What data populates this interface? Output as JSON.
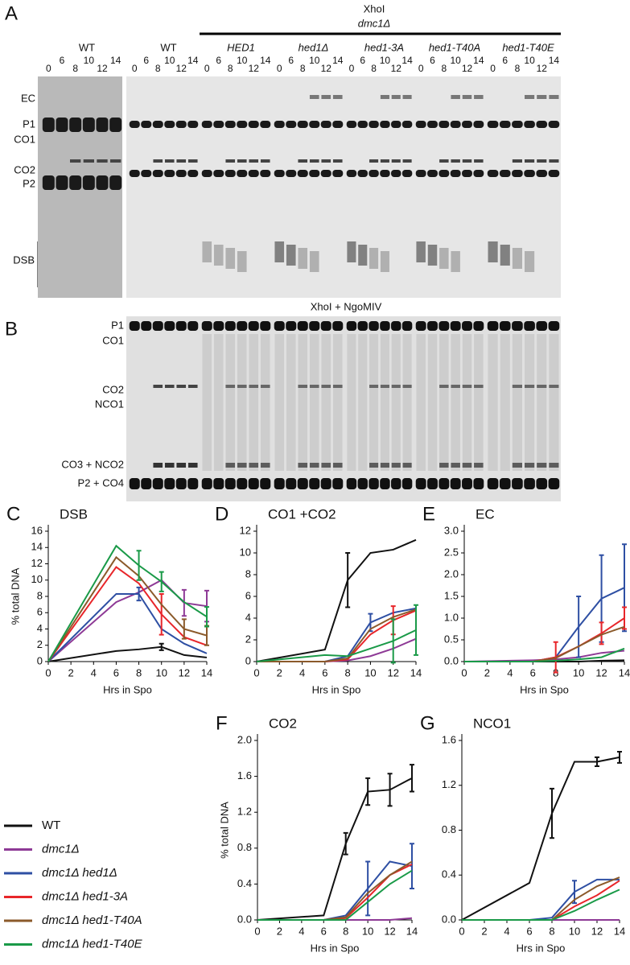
{
  "gel": {
    "panel_a": "A",
    "panel_b": "B",
    "enzyme_a": "XhoI",
    "genotype": "dmc1Δ",
    "enzyme_b": "XhoI + NgoMIV",
    "timepoints": [
      "0",
      "6",
      "8",
      "10",
      "12",
      "14"
    ],
    "strains": [
      {
        "label": "WT",
        "color": "#111111"
      },
      {
        "label": "WT",
        "color": "#111111"
      },
      {
        "label": "HED1",
        "color": "#8e3a96"
      },
      {
        "label": "hed1Δ",
        "color": "#2e4fa3"
      },
      {
        "label": "hed1-3A",
        "color": "#e8262a"
      },
      {
        "label": "hed1-T40A",
        "color": "#8b5a2b"
      },
      {
        "label": "hed1-T40E",
        "color": "#1a9a48"
      }
    ],
    "bands_a": [
      "EC",
      "P1",
      "CO1",
      "CO2",
      "P2",
      "DSB"
    ],
    "bands_b": [
      "P1",
      "CO1",
      "CO2",
      "NCO1",
      "CO3 + NCO2",
      "P2 + CO4"
    ]
  },
  "chart_data": [
    {
      "type": "line",
      "panel": "C",
      "title": "DSB",
      "ylabel": "% total DNA",
      "xlabel": "Hrs in Spo",
      "x": [
        0,
        6,
        8,
        10,
        12,
        14
      ],
      "xlim": [
        0,
        14
      ],
      "xticks": [
        0,
        2,
        4,
        6,
        8,
        10,
        12,
        14
      ],
      "ylim": [
        0,
        16
      ],
      "yticks": [
        0,
        2,
        4,
        6,
        8,
        10,
        12,
        14,
        16
      ],
      "series": [
        {
          "name": "WT",
          "color": "#111111",
          "values": [
            0,
            1.3,
            1.5,
            1.8,
            0.8,
            0.5
          ],
          "errors": [
            null,
            null,
            null,
            0.4,
            null,
            null
          ]
        },
        {
          "name": "dmc1Δ",
          "color": "#8e3a96",
          "values": [
            0,
            7.3,
            8.5,
            10,
            7.2,
            6.8
          ],
          "errors": [
            null,
            null,
            null,
            null,
            1.6,
            1.9
          ]
        },
        {
          "name": "dmc1Δ hed1Δ",
          "color": "#2e4fa3",
          "values": [
            0,
            8.3,
            8.3,
            4,
            2.2,
            1.0
          ],
          "errors": [
            null,
            null,
            0.8,
            null,
            null,
            null
          ]
        },
        {
          "name": "dmc1Δ hed1-3A",
          "color": "#e8262a",
          "values": [
            0,
            11.6,
            9.6,
            5.8,
            3,
            2
          ],
          "errors": [
            null,
            null,
            null,
            2.5,
            null,
            null
          ]
        },
        {
          "name": "dmc1Δ hed1-T40A",
          "color": "#8b5a2b",
          "values": [
            0,
            12.8,
            10.5,
            7,
            4,
            3.2
          ],
          "errors": [
            null,
            null,
            null,
            null,
            1.2,
            1.2
          ]
        },
        {
          "name": "dmc1Δ hed1-T40E",
          "color": "#1a9a48",
          "values": [
            0,
            14.2,
            11.8,
            9.8,
            7.3,
            5.5
          ],
          "errors": [
            null,
            null,
            1.8,
            1.2,
            null,
            1.2
          ]
        }
      ]
    },
    {
      "type": "line",
      "panel": "D",
      "title": "CO1 +CO2",
      "xlabel": "Hrs in Spo",
      "x": [
        0,
        6,
        8,
        10,
        12,
        14
      ],
      "xlim": [
        0,
        14
      ],
      "xticks": [
        0,
        2,
        4,
        6,
        8,
        10,
        12,
        14
      ],
      "ylim": [
        0,
        12
      ],
      "yticks": [
        0,
        2,
        4,
        6,
        8,
        10,
        12
      ],
      "series": [
        {
          "color": "#111111",
          "values": [
            0,
            1.1,
            7.5,
            10,
            10.3,
            11.2
          ],
          "errors": [
            null,
            null,
            2.5,
            null,
            null,
            null
          ]
        },
        {
          "color": "#8e3a96",
          "values": [
            0,
            0,
            0.1,
            0.5,
            1.2,
            2.1
          ],
          "errors": [
            null,
            null,
            null,
            null,
            null,
            null
          ]
        },
        {
          "color": "#2e4fa3",
          "values": [
            0,
            0,
            0.5,
            3.6,
            4.5,
            4.9
          ],
          "errors": [
            null,
            null,
            null,
            0.8,
            null,
            null
          ]
        },
        {
          "color": "#e8262a",
          "values": [
            0,
            0,
            0.2,
            2.5,
            3.8,
            4.7
          ],
          "errors": [
            null,
            null,
            null,
            null,
            1.3,
            null
          ]
        },
        {
          "color": "#8b5a2b",
          "values": [
            0,
            0,
            0.3,
            3.0,
            4.1,
            4.8
          ],
          "errors": [
            null,
            null,
            null,
            null,
            null,
            null
          ]
        },
        {
          "color": "#1a9a48",
          "values": [
            0,
            0.6,
            0.5,
            1.2,
            1.9,
            2.9
          ],
          "errors": [
            null,
            null,
            null,
            null,
            2.0,
            2.3
          ]
        }
      ]
    },
    {
      "type": "line",
      "panel": "E",
      "title": "EC",
      "xlabel": "Hrs in Spo",
      "x": [
        0,
        6,
        8,
        10,
        12,
        14
      ],
      "xlim": [
        0,
        14
      ],
      "xticks": [
        0,
        2,
        4,
        6,
        8,
        10,
        12,
        14
      ],
      "ylim": [
        0,
        3
      ],
      "yticks": [
        {
          "value": 0,
          "label": "0.0"
        },
        0.5,
        {
          "value": 1,
          "label": "1.0"
        },
        1.5,
        {
          "value": 2,
          "label": "2.0"
        },
        2.5,
        {
          "value": 3,
          "label": "3.0"
        }
      ],
      "series": [
        {
          "color": "#111111",
          "values": [
            0,
            0,
            0,
            0,
            0.02,
            0.03
          ],
          "errors": [
            null,
            null,
            null,
            null,
            null,
            null
          ]
        },
        {
          "color": "#8e3a96",
          "values": [
            0,
            0.03,
            0.05,
            0.1,
            0.2,
            0.25
          ],
          "errors": [
            null,
            null,
            null,
            null,
            null,
            null
          ]
        },
        {
          "color": "#2e4fa3",
          "values": [
            0,
            0,
            0.1,
            0.8,
            1.45,
            1.7
          ],
          "errors": [
            null,
            null,
            null,
            0.7,
            1.0,
            1.0
          ]
        },
        {
          "color": "#e8262a",
          "values": [
            0,
            0,
            0.1,
            0.35,
            0.65,
            1.0
          ],
          "errors": [
            null,
            null,
            0.35,
            null,
            0.25,
            0.25
          ]
        },
        {
          "color": "#8b5a2b",
          "values": [
            0,
            0,
            0.08,
            0.35,
            0.62,
            0.8
          ],
          "errors": [
            null,
            null,
            null,
            null,
            null,
            null
          ]
        },
        {
          "color": "#1a9a48",
          "values": [
            0,
            0,
            0.02,
            0.05,
            0.1,
            0.3
          ],
          "errors": [
            null,
            null,
            null,
            null,
            null,
            null
          ]
        }
      ]
    },
    {
      "type": "line",
      "panel": "F",
      "title": "CO2",
      "ylabel": "% total DNA",
      "xlabel": "Hrs in Spo",
      "x": [
        0,
        6,
        8,
        10,
        12,
        14
      ],
      "xlim": [
        0,
        14
      ],
      "xticks": [
        0,
        2,
        4,
        6,
        8,
        10,
        12,
        14
      ],
      "ylim": [
        0,
        2
      ],
      "yticks": [
        {
          "value": 0,
          "label": "0.0"
        },
        0.4,
        0.8,
        1.2,
        1.6,
        {
          "value": 2,
          "label": "2.0"
        }
      ],
      "series": [
        {
          "color": "#111111",
          "values": [
            0,
            0.05,
            0.85,
            1.43,
            1.45,
            1.58
          ],
          "errors": [
            null,
            null,
            0.12,
            0.15,
            0.18,
            0.15
          ]
        },
        {
          "color": "#8e3a96",
          "values": [
            0,
            0,
            0,
            0,
            0,
            0.02
          ],
          "errors": [
            null,
            null,
            null,
            null,
            null,
            null
          ]
        },
        {
          "color": "#2e4fa3",
          "values": [
            0,
            0,
            0.05,
            0.35,
            0.65,
            0.6
          ],
          "errors": [
            null,
            null,
            null,
            0.3,
            null,
            0.25
          ]
        },
        {
          "color": "#e8262a",
          "values": [
            0,
            0,
            0.02,
            0.25,
            0.5,
            0.62
          ],
          "errors": [
            null,
            null,
            null,
            null,
            null,
            null
          ]
        },
        {
          "color": "#8b5a2b",
          "values": [
            0,
            0,
            0.03,
            0.3,
            0.5,
            0.65
          ],
          "errors": [
            null,
            null,
            null,
            null,
            null,
            null
          ]
        },
        {
          "color": "#1a9a48",
          "values": [
            0,
            0,
            0,
            0.2,
            0.4,
            0.55
          ],
          "errors": [
            null,
            null,
            null,
            null,
            null,
            null
          ]
        }
      ]
    },
    {
      "type": "line",
      "panel": "G",
      "title": "NCO1",
      "xlabel": "Hrs in Spo",
      "x": [
        0,
        6,
        8,
        10,
        12,
        14
      ],
      "xlim": [
        0,
        14
      ],
      "xticks": [
        0,
        2,
        4,
        6,
        8,
        10,
        12,
        14
      ],
      "ylim": [
        0,
        1.6
      ],
      "yticks": [
        {
          "value": 0,
          "label": "0.0"
        },
        0.4,
        0.8,
        1.2,
        1.6
      ],
      "series": [
        {
          "color": "#111111",
          "values": [
            0,
            0.33,
            0.95,
            1.41,
            1.41,
            1.45
          ],
          "errors": [
            null,
            null,
            0.22,
            null,
            0.04,
            0.05
          ]
        },
        {
          "color": "#8e3a96",
          "values": [
            0,
            0,
            0,
            0,
            0,
            0
          ],
          "errors": [
            null,
            null,
            null,
            null,
            null,
            null
          ]
        },
        {
          "color": "#2e4fa3",
          "values": [
            0,
            0,
            0.02,
            0.25,
            0.36,
            0.36
          ],
          "errors": [
            null,
            null,
            null,
            0.1,
            null,
            null
          ]
        },
        {
          "color": "#e8262a",
          "values": [
            0,
            0,
            0,
            0.12,
            0.22,
            0.35
          ],
          "errors": [
            null,
            null,
            null,
            null,
            null,
            null
          ]
        },
        {
          "color": "#8b5a2b",
          "values": [
            0,
            0,
            0,
            0.18,
            0.3,
            0.38
          ],
          "errors": [
            null,
            null,
            null,
            null,
            null,
            null
          ]
        },
        {
          "color": "#1a9a48",
          "values": [
            0,
            0,
            0,
            0.08,
            0.18,
            0.27
          ],
          "errors": [
            null,
            null,
            null,
            null,
            null,
            null
          ]
        }
      ]
    }
  ]
}
